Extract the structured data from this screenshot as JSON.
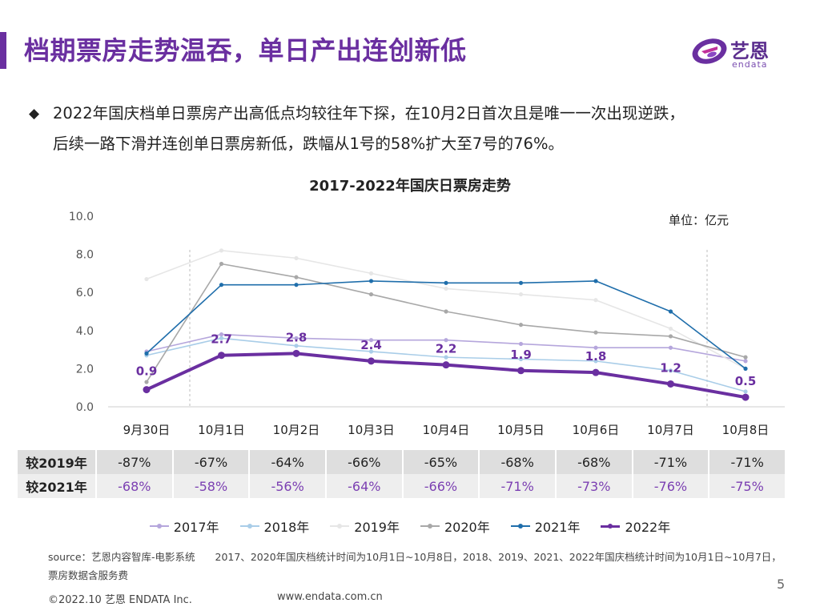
{
  "slide": {
    "title": "档期票房走势温吞，单日产出连创新低",
    "bullet_line1": "2022年国庆档单日票房产出高低点均较往年下探，在10月2日首次且是唯一一次出现逆跌，",
    "bullet_line2": "后续一路下滑并连创单日票房新低，跌幅从1号的58%扩大至7号的76%。",
    "bullet_symbol": "◆",
    "page_number": "5"
  },
  "logo": {
    "text": "艺恩",
    "sub": "endata"
  },
  "chart_data": {
    "type": "line",
    "title": "2017-2022年国庆日票房走势",
    "unit": "单位：亿元",
    "categories": [
      "9月30日",
      "10月1日",
      "10月2日",
      "10月3日",
      "10月4日",
      "10月5日",
      "10月6日",
      "10月7日",
      "10月8日"
    ],
    "ylim": [
      0,
      10
    ],
    "yticks": [
      "0.0",
      "2.0",
      "4.0",
      "6.0",
      "8.0",
      "10.0"
    ],
    "series": [
      {
        "name": "2017年",
        "color": "#b5a6dc",
        "values": [
          2.9,
          3.8,
          3.6,
          3.5,
          3.5,
          3.3,
          3.1,
          3.1,
          2.4
        ]
      },
      {
        "name": "2018年",
        "color": "#a9cde8",
        "values": [
          2.7,
          3.6,
          3.2,
          2.9,
          2.6,
          2.5,
          2.4,
          1.9,
          0.8
        ]
      },
      {
        "name": "2019年",
        "color": "#e6e6e6",
        "values": [
          6.7,
          8.2,
          7.8,
          7.0,
          6.2,
          5.9,
          5.6,
          4.1,
          2.0
        ]
      },
      {
        "name": "2020年",
        "color": "#a8a8a8",
        "values": [
          1.3,
          7.5,
          6.8,
          5.9,
          5.0,
          4.3,
          3.9,
          3.7,
          2.6
        ]
      },
      {
        "name": "2021年",
        "color": "#1f6eab",
        "values": [
          2.8,
          6.4,
          6.4,
          6.6,
          6.5,
          6.5,
          6.6,
          5.0,
          2.0
        ]
      },
      {
        "name": "2022年",
        "color": "#6a2fa0",
        "values": [
          0.9,
          2.7,
          2.8,
          2.4,
          2.2,
          1.9,
          1.8,
          1.2,
          0.5
        ]
      }
    ],
    "data_labels": [
      "0.9",
      "2.7",
      "2.8",
      "2.4",
      "2.2",
      "1.9",
      "1.8",
      "1.2",
      "0.5"
    ]
  },
  "comparison": {
    "row1_label": "较2019年",
    "row1": [
      "-87%",
      "-67%",
      "-64%",
      "-66%",
      "-65%",
      "-68%",
      "-68%",
      "-71%",
      "-71%"
    ],
    "row2_label": "较2021年",
    "row2": [
      "-68%",
      "-58%",
      "-56%",
      "-64%",
      "-66%",
      "-71%",
      "-73%",
      "-76%",
      "-75%"
    ]
  },
  "footer": {
    "source": "source：艺恩内容智库-电影系统　　2017、2020年国庆档统计时间为10月1日~10月8日，2018、2019、2021、2022年国庆档统计时间为10月1日~10月7日，票房数据含服务费",
    "copyright": "©2022.10 艺恩 ENDATA Inc.",
    "url": "www.endata.com.cn"
  }
}
